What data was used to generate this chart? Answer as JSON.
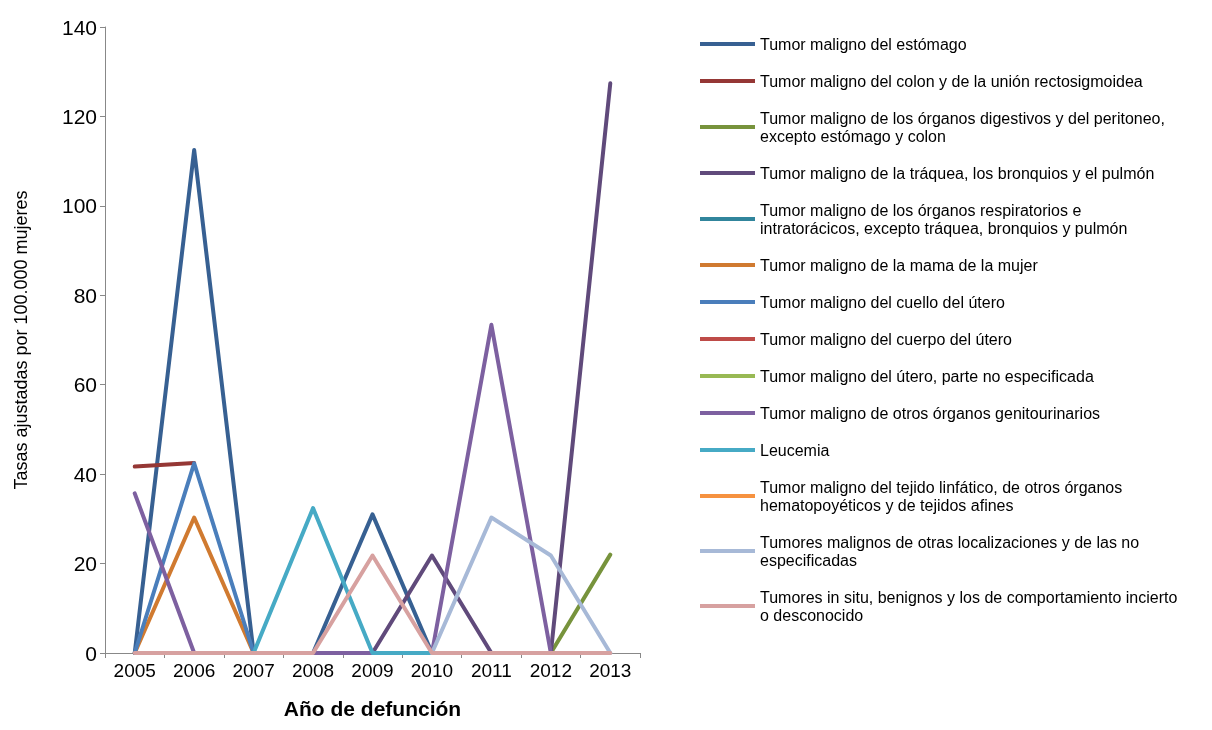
{
  "chart_data": {
    "type": "line",
    "xlabel": "Año de defunción",
    "ylabel": "Tasas ajustadas por 100.000 mujeres",
    "categories": [
      "2005",
      "2006",
      "2007",
      "2008",
      "2009",
      "2010",
      "2011",
      "2012",
      "2013"
    ],
    "ylim": [
      0,
      140
    ],
    "yticks": [
      0,
      20,
      40,
      60,
      80,
      100,
      120,
      140
    ],
    "grid": false,
    "legend": "right",
    "marker": "none",
    "line_style": "solid",
    "series": [
      {
        "name": "Tumor maligno del estómago",
        "color": "#376092",
        "values": [
          0,
          112.5,
          0,
          0,
          31,
          0,
          null,
          null,
          null
        ]
      },
      {
        "name": "Tumor maligno del colon y de la unión rectosigmoidea",
        "color": "#953735",
        "values": [
          41.7,
          42.5,
          null,
          null,
          null,
          null,
          null,
          null,
          null
        ]
      },
      {
        "name": "Tumor maligno de los órganos digestivos y del peritoneo, excepto estómago y colon",
        "color": "#77933c",
        "values": [
          null,
          null,
          null,
          null,
          null,
          null,
          null,
          0,
          22
        ]
      },
      {
        "name": "Tumor maligno de la tráquea, los bronquios y el pulmón",
        "color": "#604a7b",
        "values": [
          null,
          null,
          null,
          null,
          0,
          21.8,
          0,
          0,
          127.4
        ]
      },
      {
        "name": "Tumor maligno de los órganos respiratorios e intratorácicos, excepto tráquea, bronquios y pulmón",
        "color": "#31859c",
        "values": [
          null,
          null,
          null,
          null,
          null,
          null,
          null,
          null,
          null
        ]
      },
      {
        "name": "Tumor maligno de la mama de la mujer",
        "color": "#d07a30",
        "values": [
          0,
          30.3,
          0,
          null,
          null,
          null,
          null,
          null,
          null
        ]
      },
      {
        "name": "Tumor maligno del cuello del útero",
        "color": "#4a7ebb",
        "values": [
          0,
          42.4,
          0,
          null,
          null,
          null,
          null,
          null,
          null
        ]
      },
      {
        "name": "Tumor maligno del cuerpo del útero",
        "color": "#be4b48",
        "values": [
          null,
          null,
          null,
          null,
          null,
          null,
          null,
          null,
          null
        ]
      },
      {
        "name": "Tumor maligno del útero, parte no especificada",
        "color": "#98b954",
        "values": [
          null,
          null,
          null,
          null,
          null,
          null,
          null,
          null,
          null
        ]
      },
      {
        "name": "Tumor maligno de otros órganos genitourinarios",
        "color": "#7d60a0",
        "values": [
          35.7,
          0,
          0,
          0,
          0,
          0,
          73.4,
          0,
          null
        ]
      },
      {
        "name": "Leucemia",
        "color": "#46aac5",
        "values": [
          null,
          null,
          0,
          32.4,
          0,
          0,
          null,
          null,
          null
        ]
      },
      {
        "name": "Tumor maligno del tejido linfático, de otros órganos hematopoyéticos y de tejidos afines",
        "color": "#f69240",
        "values": [
          null,
          null,
          null,
          null,
          null,
          null,
          null,
          null,
          null
        ]
      },
      {
        "name": "Tumores malignos de otras localizaciones y de las no especificadas",
        "color": "#a7b9d7",
        "values": [
          null,
          null,
          null,
          null,
          null,
          0,
          30.3,
          21.8,
          0
        ]
      },
      {
        "name": "Tumores in situ, benignos y los de comportamiento incierto o desconocido",
        "color": "#d7a1a0",
        "values": [
          0,
          0,
          0,
          0,
          21.8,
          0,
          0,
          0,
          0
        ]
      }
    ]
  }
}
